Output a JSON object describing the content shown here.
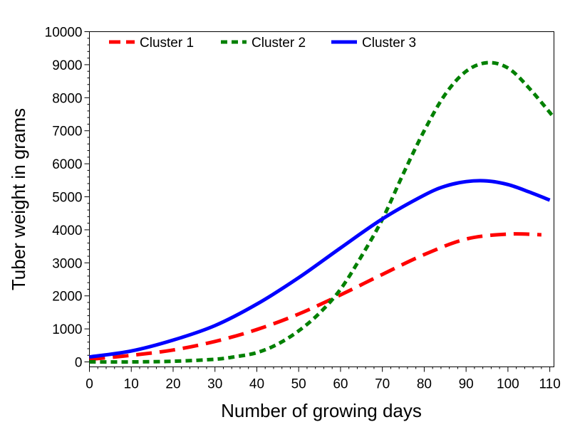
{
  "chart_data": {
    "type": "line",
    "xlabel": "Number of growing days",
    "ylabel": "Tuber weight in grams",
    "xlim": [
      0,
      111
    ],
    "ylim": [
      -150,
      10000
    ],
    "xticks": [
      0,
      10,
      20,
      30,
      40,
      50,
      60,
      70,
      80,
      90,
      100,
      110
    ],
    "yticks": [
      0,
      1000,
      2000,
      3000,
      4000,
      5000,
      6000,
      7000,
      8000,
      9000,
      10000
    ],
    "grid": false,
    "legend_position": "top",
    "series": [
      {
        "name": "Cluster 1",
        "color": "#ff0000",
        "style": "long-dash",
        "x": [
          0,
          10,
          20,
          30,
          40,
          50,
          60,
          70,
          80,
          90,
          100,
          108
        ],
        "y": [
          80,
          200,
          360,
          620,
          980,
          1450,
          2030,
          2650,
          3250,
          3720,
          3870,
          3850
        ]
      },
      {
        "name": "Cluster 2",
        "color": "#008000",
        "style": "short-dash",
        "x": [
          0,
          10,
          20,
          30,
          35,
          40,
          45,
          50,
          55,
          60,
          65,
          70,
          75,
          80,
          85,
          90,
          95,
          100,
          105,
          111
        ],
        "y": [
          0,
          0,
          20,
          80,
          160,
          280,
          540,
          940,
          1480,
          2200,
          3200,
          4320,
          5700,
          7000,
          8100,
          8800,
          9060,
          8900,
          8300,
          7400
        ]
      },
      {
        "name": "Cluster 3",
        "color": "#0000ff",
        "style": "solid",
        "x": [
          0,
          10,
          20,
          30,
          40,
          50,
          60,
          70,
          80,
          85,
          90,
          95,
          100,
          105,
          110
        ],
        "y": [
          150,
          330,
          660,
          1100,
          1750,
          2550,
          3450,
          4330,
          5050,
          5320,
          5460,
          5480,
          5370,
          5150,
          4900
        ]
      }
    ]
  }
}
